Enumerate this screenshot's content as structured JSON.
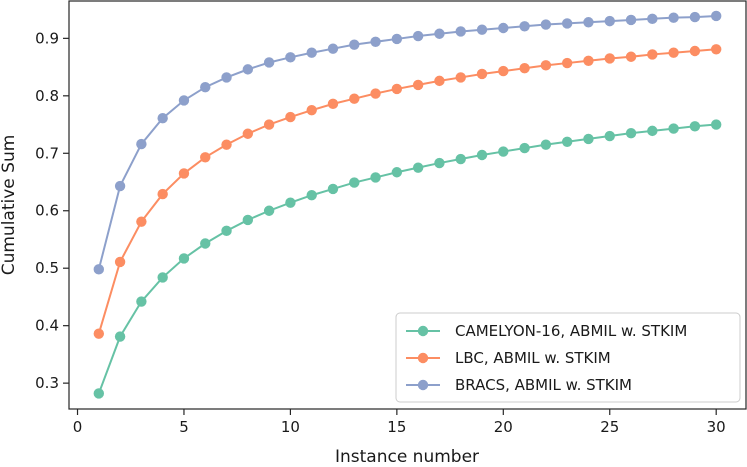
{
  "chart_data": {
    "type": "line",
    "title": "",
    "xlabel": "Instance number",
    "ylabel": "Cumulative Sum",
    "xlim": [
      -0.4,
      31.4
    ],
    "ylim": [
      0.255,
      0.965
    ],
    "xticks": [
      0,
      5,
      10,
      15,
      20,
      25,
      30
    ],
    "yticks": [
      0.3,
      0.4,
      0.5,
      0.6,
      0.7,
      0.8,
      0.9
    ],
    "xtick_labels": [
      "0",
      "5",
      "10",
      "15",
      "20",
      "25",
      "30"
    ],
    "ytick_labels": [
      "0.3",
      "0.4",
      "0.5",
      "0.6",
      "0.7",
      "0.8",
      "0.9"
    ],
    "grid": false,
    "legend_position": "lower-right",
    "x": [
      1,
      2,
      3,
      4,
      5,
      6,
      7,
      8,
      9,
      10,
      11,
      12,
      13,
      14,
      15,
      16,
      17,
      18,
      19,
      20,
      21,
      22,
      23,
      24,
      25,
      26,
      27,
      28,
      29,
      30
    ],
    "series": [
      {
        "name": "CAMELYON-16, ABMIL w. STKIM",
        "color": "#66c2a5",
        "values": [
          0.282,
          0.381,
          0.442,
          0.484,
          0.517,
          0.543,
          0.565,
          0.584,
          0.6,
          0.614,
          0.627,
          0.638,
          0.649,
          0.658,
          0.667,
          0.675,
          0.683,
          0.69,
          0.697,
          0.703,
          0.709,
          0.715,
          0.72,
          0.725,
          0.73,
          0.735,
          0.739,
          0.743,
          0.747,
          0.75
        ]
      },
      {
        "name": "LBC, ABMIL w. STKIM",
        "color": "#fc8d62",
        "values": [
          0.386,
          0.511,
          0.581,
          0.629,
          0.665,
          0.693,
          0.715,
          0.734,
          0.75,
          0.763,
          0.775,
          0.786,
          0.795,
          0.804,
          0.812,
          0.819,
          0.826,
          0.832,
          0.838,
          0.843,
          0.848,
          0.853,
          0.857,
          0.861,
          0.865,
          0.868,
          0.872,
          0.875,
          0.878,
          0.881
        ]
      },
      {
        "name": "BRACS, ABMIL w. STKIM",
        "color": "#8da0cb",
        "values": [
          0.498,
          0.643,
          0.716,
          0.761,
          0.792,
          0.815,
          0.832,
          0.846,
          0.858,
          0.867,
          0.875,
          0.882,
          0.889,
          0.894,
          0.899,
          0.904,
          0.908,
          0.912,
          0.915,
          0.918,
          0.921,
          0.924,
          0.926,
          0.928,
          0.93,
          0.932,
          0.934,
          0.936,
          0.937,
          0.939
        ]
      }
    ]
  }
}
